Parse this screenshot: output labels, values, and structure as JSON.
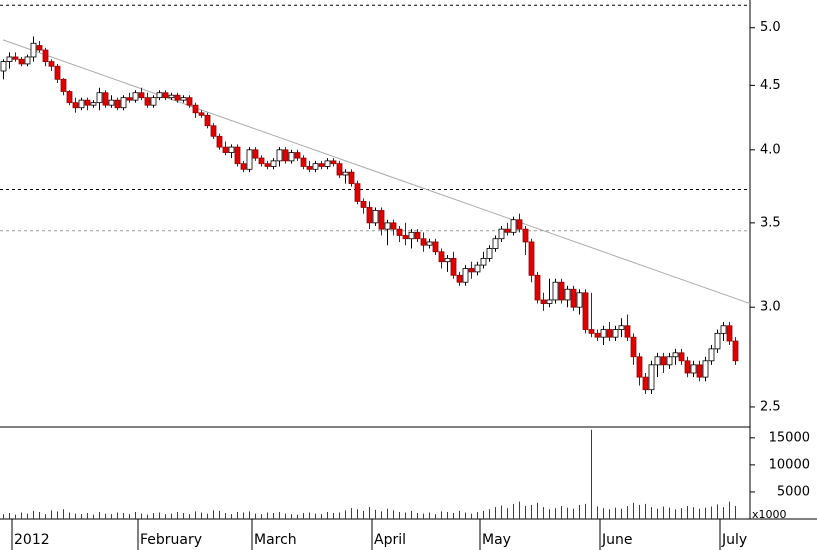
{
  "chart_data": {
    "type": "candlestick",
    "categories": [
      null,
      "2012",
      null,
      null,
      null,
      null,
      null,
      null,
      null,
      null,
      null,
      null,
      null,
      null,
      null,
      null,
      null,
      null,
      null,
      null,
      null,
      null,
      "February",
      null,
      null,
      null,
      null,
      null,
      null,
      null,
      null,
      null,
      null,
      null,
      null,
      null,
      null,
      null,
      null,
      null,
      null,
      "March",
      null,
      null,
      null,
      null,
      null,
      null,
      null,
      null,
      null,
      null,
      null,
      null,
      null,
      null,
      null,
      null,
      null,
      null,
      null,
      "April",
      null,
      null,
      null,
      null,
      null,
      null,
      null,
      null,
      null,
      null,
      null,
      null,
      null,
      null,
      null,
      null,
      null,
      "May",
      null,
      null,
      null,
      null,
      null,
      null,
      null,
      null,
      null,
      null,
      null,
      null,
      null,
      null,
      null,
      null,
      null,
      null,
      null,
      "June",
      null,
      null,
      null,
      null,
      null,
      null,
      null,
      null,
      null,
      null,
      null,
      null,
      null,
      null,
      null,
      null,
      null,
      null,
      null,
      "July",
      null,
      null,
      null
    ],
    "candles": [
      [
        4.62,
        4.72,
        4.55,
        4.7
      ],
      [
        4.7,
        4.78,
        4.64,
        4.74
      ],
      [
        4.74,
        4.78,
        4.7,
        4.72
      ],
      [
        4.72,
        4.74,
        4.66,
        4.68
      ],
      [
        4.68,
        4.76,
        4.66,
        4.74
      ],
      [
        4.74,
        4.92,
        4.7,
        4.86
      ],
      [
        4.84,
        4.88,
        4.78,
        4.8
      ],
      [
        4.8,
        4.82,
        4.66,
        4.7
      ],
      [
        4.7,
        4.72,
        4.62,
        4.66
      ],
      [
        4.66,
        4.68,
        4.52,
        4.55
      ],
      [
        4.55,
        4.56,
        4.42,
        4.45
      ],
      [
        4.45,
        4.46,
        4.34,
        4.36
      ],
      [
        4.36,
        4.4,
        4.28,
        4.32
      ],
      [
        4.32,
        4.4,
        4.3,
        4.38
      ],
      [
        4.38,
        4.4,
        4.3,
        4.34
      ],
      [
        4.34,
        4.38,
        4.32,
        4.36
      ],
      [
        4.36,
        4.48,
        4.3,
        4.44
      ],
      [
        4.44,
        4.46,
        4.32,
        4.34
      ],
      [
        4.34,
        4.42,
        4.32,
        4.38
      ],
      [
        4.38,
        4.4,
        4.3,
        4.32
      ],
      [
        4.32,
        4.42,
        4.3,
        4.4
      ],
      [
        4.4,
        4.44,
        4.36,
        4.38
      ],
      [
        4.38,
        4.46,
        4.36,
        4.44
      ],
      [
        4.44,
        4.48,
        4.38,
        4.4
      ],
      [
        4.4,
        4.44,
        4.32,
        4.34
      ],
      [
        4.34,
        4.42,
        4.32,
        4.4
      ],
      [
        4.4,
        4.46,
        4.38,
        4.44
      ],
      [
        4.44,
        4.46,
        4.38,
        4.4
      ],
      [
        4.4,
        4.44,
        4.38,
        4.42
      ],
      [
        4.42,
        4.44,
        4.36,
        4.38
      ],
      [
        4.38,
        4.42,
        4.36,
        4.4
      ],
      [
        4.4,
        4.42,
        4.32,
        4.34
      ],
      [
        4.34,
        4.36,
        4.24,
        4.28
      ],
      [
        4.28,
        4.3,
        4.24,
        4.26
      ],
      [
        4.26,
        4.28,
        4.16,
        4.18
      ],
      [
        4.18,
        4.2,
        4.08,
        4.1
      ],
      [
        4.1,
        4.12,
        4.0,
        4.02
      ],
      [
        4.02,
        4.06,
        3.96,
        3.98
      ],
      [
        3.98,
        4.04,
        3.94,
        4.02
      ],
      [
        4.02,
        4.04,
        3.88,
        3.9
      ],
      [
        3.9,
        3.92,
        3.84,
        3.86
      ],
      [
        3.86,
        4.02,
        3.84,
        4.0
      ],
      [
        4.0,
        4.02,
        3.92,
        3.94
      ],
      [
        3.94,
        3.96,
        3.88,
        3.9
      ],
      [
        3.9,
        3.92,
        3.86,
        3.88
      ],
      [
        3.88,
        3.94,
        3.86,
        3.92
      ],
      [
        3.92,
        4.02,
        3.88,
        4.0
      ],
      [
        4.0,
        4.02,
        3.9,
        3.92
      ],
      [
        3.92,
        4.0,
        3.9,
        3.98
      ],
      [
        3.98,
        4.0,
        3.92,
        3.94
      ],
      [
        3.94,
        3.96,
        3.86,
        3.88
      ],
      [
        3.88,
        3.92,
        3.84,
        3.86
      ],
      [
        3.86,
        3.92,
        3.84,
        3.9
      ],
      [
        3.9,
        3.92,
        3.86,
        3.88
      ],
      [
        3.88,
        3.94,
        3.86,
        3.92
      ],
      [
        3.92,
        3.94,
        3.88,
        3.9
      ],
      [
        3.9,
        3.92,
        3.8,
        3.82
      ],
      [
        3.82,
        3.86,
        3.76,
        3.84
      ],
      [
        3.84,
        3.86,
        3.74,
        3.76
      ],
      [
        3.76,
        3.78,
        3.62,
        3.64
      ],
      [
        3.64,
        3.66,
        3.56,
        3.6
      ],
      [
        3.6,
        3.64,
        3.46,
        3.5
      ],
      [
        3.5,
        3.6,
        3.48,
        3.58
      ],
      [
        3.58,
        3.6,
        3.42,
        3.46
      ],
      [
        3.46,
        3.52,
        3.36,
        3.5
      ],
      [
        3.5,
        3.52,
        3.42,
        3.46
      ],
      [
        3.46,
        3.48,
        3.38,
        3.42
      ],
      [
        3.42,
        3.5,
        3.36,
        3.4
      ],
      [
        3.4,
        3.46,
        3.34,
        3.44
      ],
      [
        3.44,
        3.46,
        3.38,
        3.4
      ],
      [
        3.4,
        3.44,
        3.32,
        3.36
      ],
      [
        3.36,
        3.4,
        3.34,
        3.38
      ],
      [
        3.38,
        3.4,
        3.3,
        3.32
      ],
      [
        3.32,
        3.34,
        3.22,
        3.26
      ],
      [
        3.26,
        3.3,
        3.2,
        3.28
      ],
      [
        3.28,
        3.32,
        3.16,
        3.18
      ],
      [
        3.18,
        3.2,
        3.12,
        3.14
      ],
      [
        3.14,
        3.24,
        3.12,
        3.22
      ],
      [
        3.22,
        3.26,
        3.16,
        3.2
      ],
      [
        3.2,
        3.26,
        3.18,
        3.24
      ],
      [
        3.24,
        3.32,
        3.22,
        3.28
      ],
      [
        3.28,
        3.36,
        3.26,
        3.34
      ],
      [
        3.34,
        3.42,
        3.32,
        3.4
      ],
      [
        3.4,
        3.48,
        3.38,
        3.46
      ],
      [
        3.46,
        3.5,
        3.42,
        3.44
      ],
      [
        3.44,
        3.54,
        3.42,
        3.52
      ],
      [
        3.52,
        3.56,
        3.44,
        3.46
      ],
      [
        3.46,
        3.48,
        3.3,
        3.38
      ],
      [
        3.38,
        3.4,
        3.14,
        3.18
      ],
      [
        3.18,
        3.2,
        3.02,
        3.04
      ],
      [
        3.04,
        3.08,
        2.98,
        3.02
      ],
      [
        3.02,
        3.16,
        3.0,
        3.04
      ],
      [
        3.04,
        3.16,
        3.02,
        3.14
      ],
      [
        3.14,
        3.16,
        3.02,
        3.04
      ],
      [
        3.04,
        3.12,
        3.0,
        3.1
      ],
      [
        3.1,
        3.12,
        2.98,
        3.0
      ],
      [
        3.0,
        3.1,
        2.96,
        3.08
      ],
      [
        3.08,
        3.1,
        2.86,
        2.88
      ],
      [
        2.88,
        3.08,
        2.84,
        2.86
      ],
      [
        2.86,
        2.88,
        2.82,
        2.84
      ],
      [
        2.84,
        2.9,
        2.8,
        2.88
      ],
      [
        2.88,
        2.92,
        2.82,
        2.84
      ],
      [
        2.84,
        2.9,
        2.82,
        2.88
      ],
      [
        2.88,
        2.94,
        2.84,
        2.9
      ],
      [
        2.9,
        2.96,
        2.82,
        2.84
      ],
      [
        2.84,
        2.86,
        2.7,
        2.74
      ],
      [
        2.74,
        2.76,
        2.6,
        2.64
      ],
      [
        2.64,
        2.66,
        2.56,
        2.58
      ],
      [
        2.58,
        2.72,
        2.56,
        2.7
      ],
      [
        2.7,
        2.76,
        2.64,
        2.74
      ],
      [
        2.74,
        2.76,
        2.66,
        2.7
      ],
      [
        2.7,
        2.76,
        2.68,
        2.74
      ],
      [
        2.74,
        2.78,
        2.7,
        2.76
      ],
      [
        2.76,
        2.78,
        2.7,
        2.72
      ],
      [
        2.72,
        2.74,
        2.64,
        2.66
      ],
      [
        2.66,
        2.72,
        2.64,
        2.7
      ],
      [
        2.7,
        2.72,
        2.62,
        2.64
      ],
      [
        2.64,
        2.74,
        2.62,
        2.72
      ],
      [
        2.72,
        2.8,
        2.7,
        2.78
      ],
      [
        2.78,
        2.88,
        2.76,
        2.86
      ],
      [
        2.86,
        2.92,
        2.82,
        2.9
      ],
      [
        2.9,
        2.92,
        2.8,
        2.82
      ],
      [
        2.82,
        2.84,
        2.7,
        2.72
      ]
    ],
    "volume": [
      900,
      1100,
      800,
      1200,
      1000,
      1500,
      1300,
      900,
      1600,
      1400,
      1800,
      1200,
      1000,
      900,
      1100,
      800,
      1300,
      1000,
      900,
      1200,
      1100,
      900,
      1300,
      1000,
      800,
      1100,
      1200,
      900,
      1000,
      1300,
      1100,
      900,
      1400,
      1200,
      1000,
      1600,
      1500,
      1100,
      900,
      1300,
      1200,
      1400,
      1000,
      900,
      1200,
      1100,
      1300,
      1000,
      900,
      800,
      1100,
      1200,
      1000,
      900,
      1300,
      1100,
      1200,
      1600,
      2000,
      1800,
      1500,
      2200,
      1700,
      1400,
      1900,
      1600,
      1300,
      1200,
      1500,
      1100,
      1000,
      1200,
      900,
      1400,
      1300,
      1100,
      1500,
      1200,
      1000,
      1300,
      1500,
      1800,
      2200,
      2500,
      2000,
      2800,
      3200,
      2400,
      2600,
      3000,
      2200,
      1800,
      2000,
      2400,
      2100,
      1900,
      2600,
      2800,
      16500,
      2300,
      2000,
      1800,
      2100,
      1900,
      2400,
      3000,
      2600,
      2800,
      2200,
      1900,
      2300,
      2100,
      1800,
      2000,
      2400,
      2200,
      1900,
      2100,
      2300,
      2700,
      2200,
      3200,
      2400
    ],
    "trendline": {
      "x": [
        0,
        124.5
      ],
      "values": [
        4.89,
        3.02
      ],
      "color": "#aaaaaa"
    },
    "hlines": [
      {
        "value": 5.21,
        "color": "#000000"
      },
      {
        "value": 3.72,
        "color": "#000000"
      },
      {
        "value": 3.45,
        "color": "#999999"
      }
    ],
    "up_color": "#ffffff",
    "down_color": "#e00000",
    "log_scale": true,
    "ylim": [
      2.41,
      5.26
    ],
    "yticks": [
      2.5,
      {
        "value": 3,
        "label": "3.0"
      },
      3.5,
      {
        "value": 4,
        "label": "4.0"
      },
      4.5,
      {
        "value": 5,
        "label": "5.0"
      }
    ],
    "volume_color": "#d00000",
    "volume_ylim": [
      0,
      17000
    ],
    "volume_yticks": [
      5000,
      10000,
      15000
    ],
    "volume_unit_label": "x1000"
  }
}
